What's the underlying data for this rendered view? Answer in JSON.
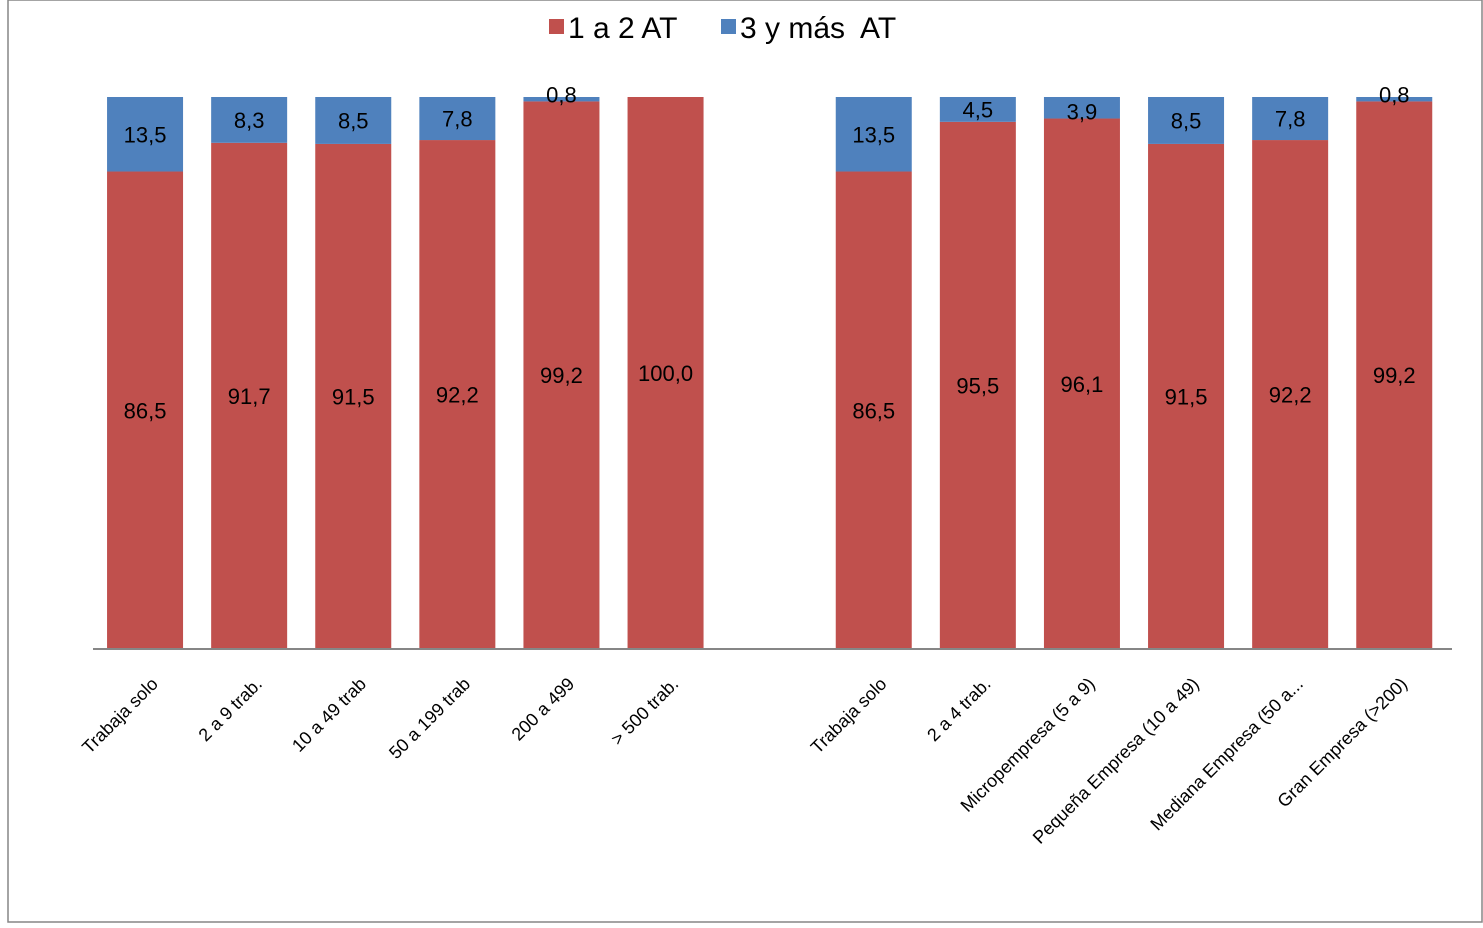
{
  "chart_data": {
    "type": "bar",
    "stacked": true,
    "normalized_100_percent": true,
    "title": "",
    "xlabel": "",
    "ylabel": "",
    "ylim": [
      0,
      100
    ],
    "grid": false,
    "legend": {
      "placement": "top-center",
      "entries": [
        "1 a 2 AT",
        "3 y más  AT"
      ]
    },
    "categories": [
      "Trabaja solo",
      "2 a 9 trab.",
      "10 a 49 trab",
      "50 a 199 trab",
      "200 a 499",
      "> 500 trab.",
      "",
      "Trabaja solo",
      "2 a 4 trab.",
      "Micropempresa (5 a 9)",
      "Pequeña Empresa (10 a 49)",
      "Mediana Empresa (50 a...",
      "Gran Empresa (>200)"
    ],
    "series": [
      {
        "name": "1 a 2 AT",
        "color": "#c0504d",
        "values": [
          86.5,
          91.7,
          91.5,
          92.2,
          99.2,
          100.0,
          null,
          86.5,
          95.5,
          96.1,
          91.5,
          92.2,
          99.2
        ],
        "labels": [
          "86,5",
          "91,7",
          "91,5",
          "92,2",
          "99,2",
          "100,0",
          "",
          "86,5",
          "95,5",
          "96,1",
          "91,5",
          "92,2",
          "99,2"
        ]
      },
      {
        "name": "3 y más  AT",
        "color": "#4f81bd",
        "values": [
          13.5,
          8.3,
          8.5,
          7.8,
          0.8,
          0.0,
          null,
          13.5,
          4.5,
          3.9,
          8.5,
          7.8,
          0.8
        ],
        "labels": [
          "13,5",
          "8,3",
          "8,5",
          "7,8",
          "0,8",
          "",
          "",
          "13,5",
          "4,5",
          "3,9",
          "8,5",
          "7,8",
          "0,8"
        ]
      }
    ]
  }
}
